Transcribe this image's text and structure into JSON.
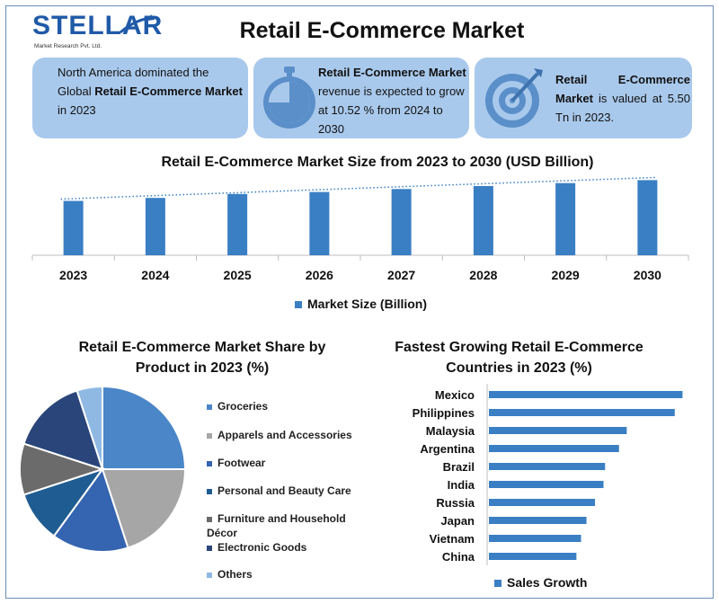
{
  "logo": {
    "brand": "STELLAR",
    "tagline": "Market Research Pvt. Ltd."
  },
  "title": "Retail E-Commerce Market",
  "cards": {
    "c1": {
      "pre": "North America dominated the Global ",
      "bold": "Retail E-Commerce Market",
      "post": " in 2023"
    },
    "c2": {
      "bold": "Retail E-Commerce Market",
      "post": " revenue is expected to grow at 10.52 % from 2024 to 2030"
    },
    "c3": {
      "bold": "Retail E-Commerce Market",
      "post": " is valued at 5.50 Tn in 2023."
    }
  },
  "colors": {
    "bar": "#3a7fc4",
    "card": "#a9c9ec",
    "brand": "#1f5aa8",
    "hbar": "#3a7fc4"
  },
  "chart_data": [
    {
      "type": "bar",
      "title": "Retail E-Commerce Market Size from 2023 to 2030 (USD Billion)",
      "categories": [
        "2023",
        "2024",
        "2025",
        "2026",
        "2027",
        "2028",
        "2029",
        "2030"
      ],
      "series": [
        {
          "name": "Market Size (Billion)",
          "values": [
            5.5,
            5.8,
            6.2,
            6.4,
            6.7,
            7.0,
            7.3,
            7.6
          ]
        }
      ],
      "trendline": "dotted linear",
      "ylim": [
        0,
        8
      ],
      "grid": false,
      "legend": "bottom"
    },
    {
      "type": "pie",
      "title_line1": "Retail E-Commerce Market Share by",
      "title_line2": "Product in 2023  (%)",
      "labels": [
        "Groceries",
        "Apparels and Accessories",
        "Footwear",
        "Personal and Beauty Care",
        "Furniture and Household Décor",
        "Electronic Goods",
        "Others"
      ],
      "values": [
        25,
        20,
        15,
        10,
        10,
        15,
        5
      ],
      "colors": [
        "#4a86c8",
        "#a6a6a6",
        "#3564b0",
        "#1f5c91",
        "#6b6b6b",
        "#2a4579",
        "#8fb9e3"
      ],
      "legend": "right"
    },
    {
      "type": "bar",
      "orientation": "horizontal",
      "title_line1": "Fastest Growing Retail E-Commerce",
      "title_line2": "Countries in 2023 (%)",
      "categories": [
        "Mexico",
        "Philippines",
        "Malaysia",
        "Argentina",
        "Brazil",
        "India",
        "Russia",
        "Japan",
        "Vietnam",
        "China"
      ],
      "series": [
        {
          "name": "Sales Growth",
          "values": [
            25.0,
            24.0,
            17.8,
            16.8,
            15.0,
            14.8,
            13.7,
            12.6,
            11.9,
            11.3
          ]
        }
      ],
      "xlim": [
        0,
        26
      ],
      "legend": "bottom"
    }
  ]
}
